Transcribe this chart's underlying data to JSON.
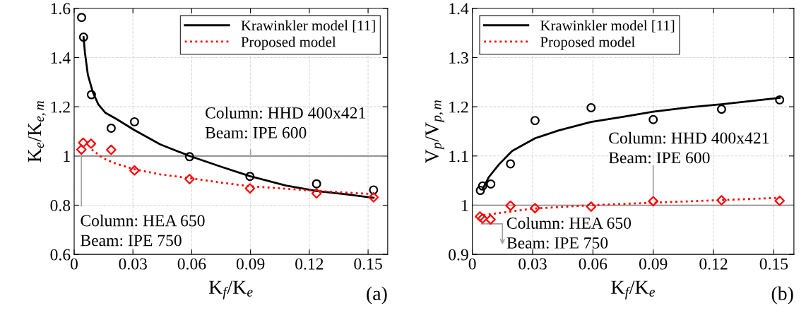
{
  "chart_data": [
    {
      "type": "line",
      "xlabel": "K$_{f}$/K$_{e}$",
      "ylabel": "K$_{e}$/K$_{e,m}$",
      "xlim": [
        0,
        0.16
      ],
      "ylim": [
        0.6,
        1.6
      ],
      "xticks": [
        0,
        0.03,
        0.06,
        0.09,
        0.12,
        0.15
      ],
      "yticks": [
        0.6,
        0.8,
        1,
        1.2,
        1.4,
        1.6
      ],
      "grid": true,
      "legend": "top right",
      "ref_lines": [
        {
          "axis": "y",
          "value": 1,
          "color": "#808080"
        }
      ],
      "annotations": [
        {
          "text": "Column: HHD 400x421\nBeam: IPE 600",
          "x": 0.09,
          "y": 1
        },
        {
          "text": "Column: HEA 650\nBeam: IPE 750",
          "x": 0.0037,
          "y": 1.026
        },
        "(a)"
      ],
      "series": [
        {
          "type": "scatter",
          "color": "#000000",
          "marker": "circle",
          "x": [
            0.0038,
            0.0048,
            0.0088,
            0.0189,
            0.0308,
            0.0589,
            0.0897,
            0.1237,
            0.1528
          ],
          "values": [
            1.563,
            1.483,
            1.249,
            1.113,
            1.139,
            0.997,
            0.917,
            0.887,
            0.862
          ]
        },
        {
          "type": "scatter",
          "color": "#ff0000",
          "marker": "diamond",
          "x": [
            0.0037,
            0.0046,
            0.0086,
            0.0189,
            0.0308,
            0.0589,
            0.0897,
            0.1237,
            0.1528
          ],
          "values": [
            1.026,
            1.054,
            1.05,
            1.025,
            0.941,
            0.906,
            0.868,
            0.848,
            0.832
          ]
        },
        {
          "name": "Krawinkler model [11]",
          "color": "#000000",
          "line_style": "solid",
          "x": [
            0.0048,
            0.0055,
            0.007,
            0.0095,
            0.0123,
            0.016,
            0.0216,
            0.0308,
            0.044,
            0.0589,
            0.0747,
            0.0897,
            0.108,
            0.1237,
            0.1398,
            0.1528
          ],
          "values": [
            1.483,
            1.42,
            1.33,
            1.26,
            1.21,
            1.175,
            1.15,
            1.105,
            1.047,
            1.0,
            0.957,
            0.918,
            0.88,
            0.858,
            0.843,
            0.83
          ]
        },
        {
          "name": "Proposed model",
          "color": "#ff0000",
          "line_style": "dotted",
          "x": [
            0.009,
            0.015,
            0.0216,
            0.0308,
            0.044,
            0.0589,
            0.0747,
            0.0897,
            0.1237,
            0.1528
          ],
          "values": [
            1.026,
            0.99,
            0.968,
            0.946,
            0.925,
            0.91,
            0.892,
            0.877,
            0.858,
            0.845
          ]
        }
      ]
    },
    {
      "type": "line",
      "xlabel": "K$_{f}$/K$_{e}$",
      "ylabel": "V$_{p}$/V$_{p,m}$",
      "xlim": [
        0,
        0.16
      ],
      "ylim": [
        0.9,
        1.4
      ],
      "xticks": [
        0,
        0.03,
        0.06,
        0.09,
        0.12,
        0.15
      ],
      "yticks": [
        0.9,
        1,
        1.1,
        1.2,
        1.3,
        1.4
      ],
      "grid": true,
      "legend": "top left",
      "ref_lines": [
        {
          "axis": "y",
          "value": 1,
          "color": "#808080"
        }
      ],
      "annotations": [
        {
          "text": "Column: HHD 400x421\nBeam: IPE 600",
          "x": 0.09,
          "y": 1.008
        },
        {
          "text": "Column: HEA 650\nBeam: IPE 750",
          "x": 0.0038,
          "y": 0.977
        },
        "(b)"
      ],
      "series": [
        {
          "type": "scatter",
          "color": "#000000",
          "marker": "circle",
          "x": [
            0.004,
            0.0051,
            0.0092,
            0.019,
            0.0312,
            0.0591,
            0.09,
            0.124,
            0.1529
          ],
          "values": [
            1.03,
            1.039,
            1.043,
            1.084,
            1.172,
            1.198,
            1.174,
            1.195,
            1.214
          ]
        },
        {
          "type": "scatter",
          "color": "#ff0000",
          "marker": "diamond",
          "x": [
            0.0038,
            0.0051,
            0.0091,
            0.019,
            0.0312,
            0.0591,
            0.09,
            0.124,
            0.1529
          ],
          "values": [
            0.977,
            0.973,
            0.971,
            0.999,
            0.994,
            0.997,
            1.008,
            1.01,
            1.009
          ]
        },
        {
          "name": "Krawinkler model [11]",
          "color": "#000000",
          "line_style": "solid",
          "x": [
            0.0052,
            0.0082,
            0.0133,
            0.0198,
            0.0312,
            0.043,
            0.0591,
            0.0755,
            0.09,
            0.108,
            0.124,
            0.1529
          ],
          "values": [
            1.033,
            1.057,
            1.083,
            1.11,
            1.136,
            1.152,
            1.169,
            1.18,
            1.19,
            1.199,
            1.205,
            1.218
          ]
        },
        {
          "name": "Proposed model",
          "color": "#ff0000",
          "line_style": "dotted",
          "x": [
            0.0056,
            0.0302,
            0.0591,
            0.09,
            0.1529
          ],
          "values": [
            0.98,
            0.993,
            1.0,
            1.005,
            1.015
          ]
        }
      ]
    }
  ]
}
